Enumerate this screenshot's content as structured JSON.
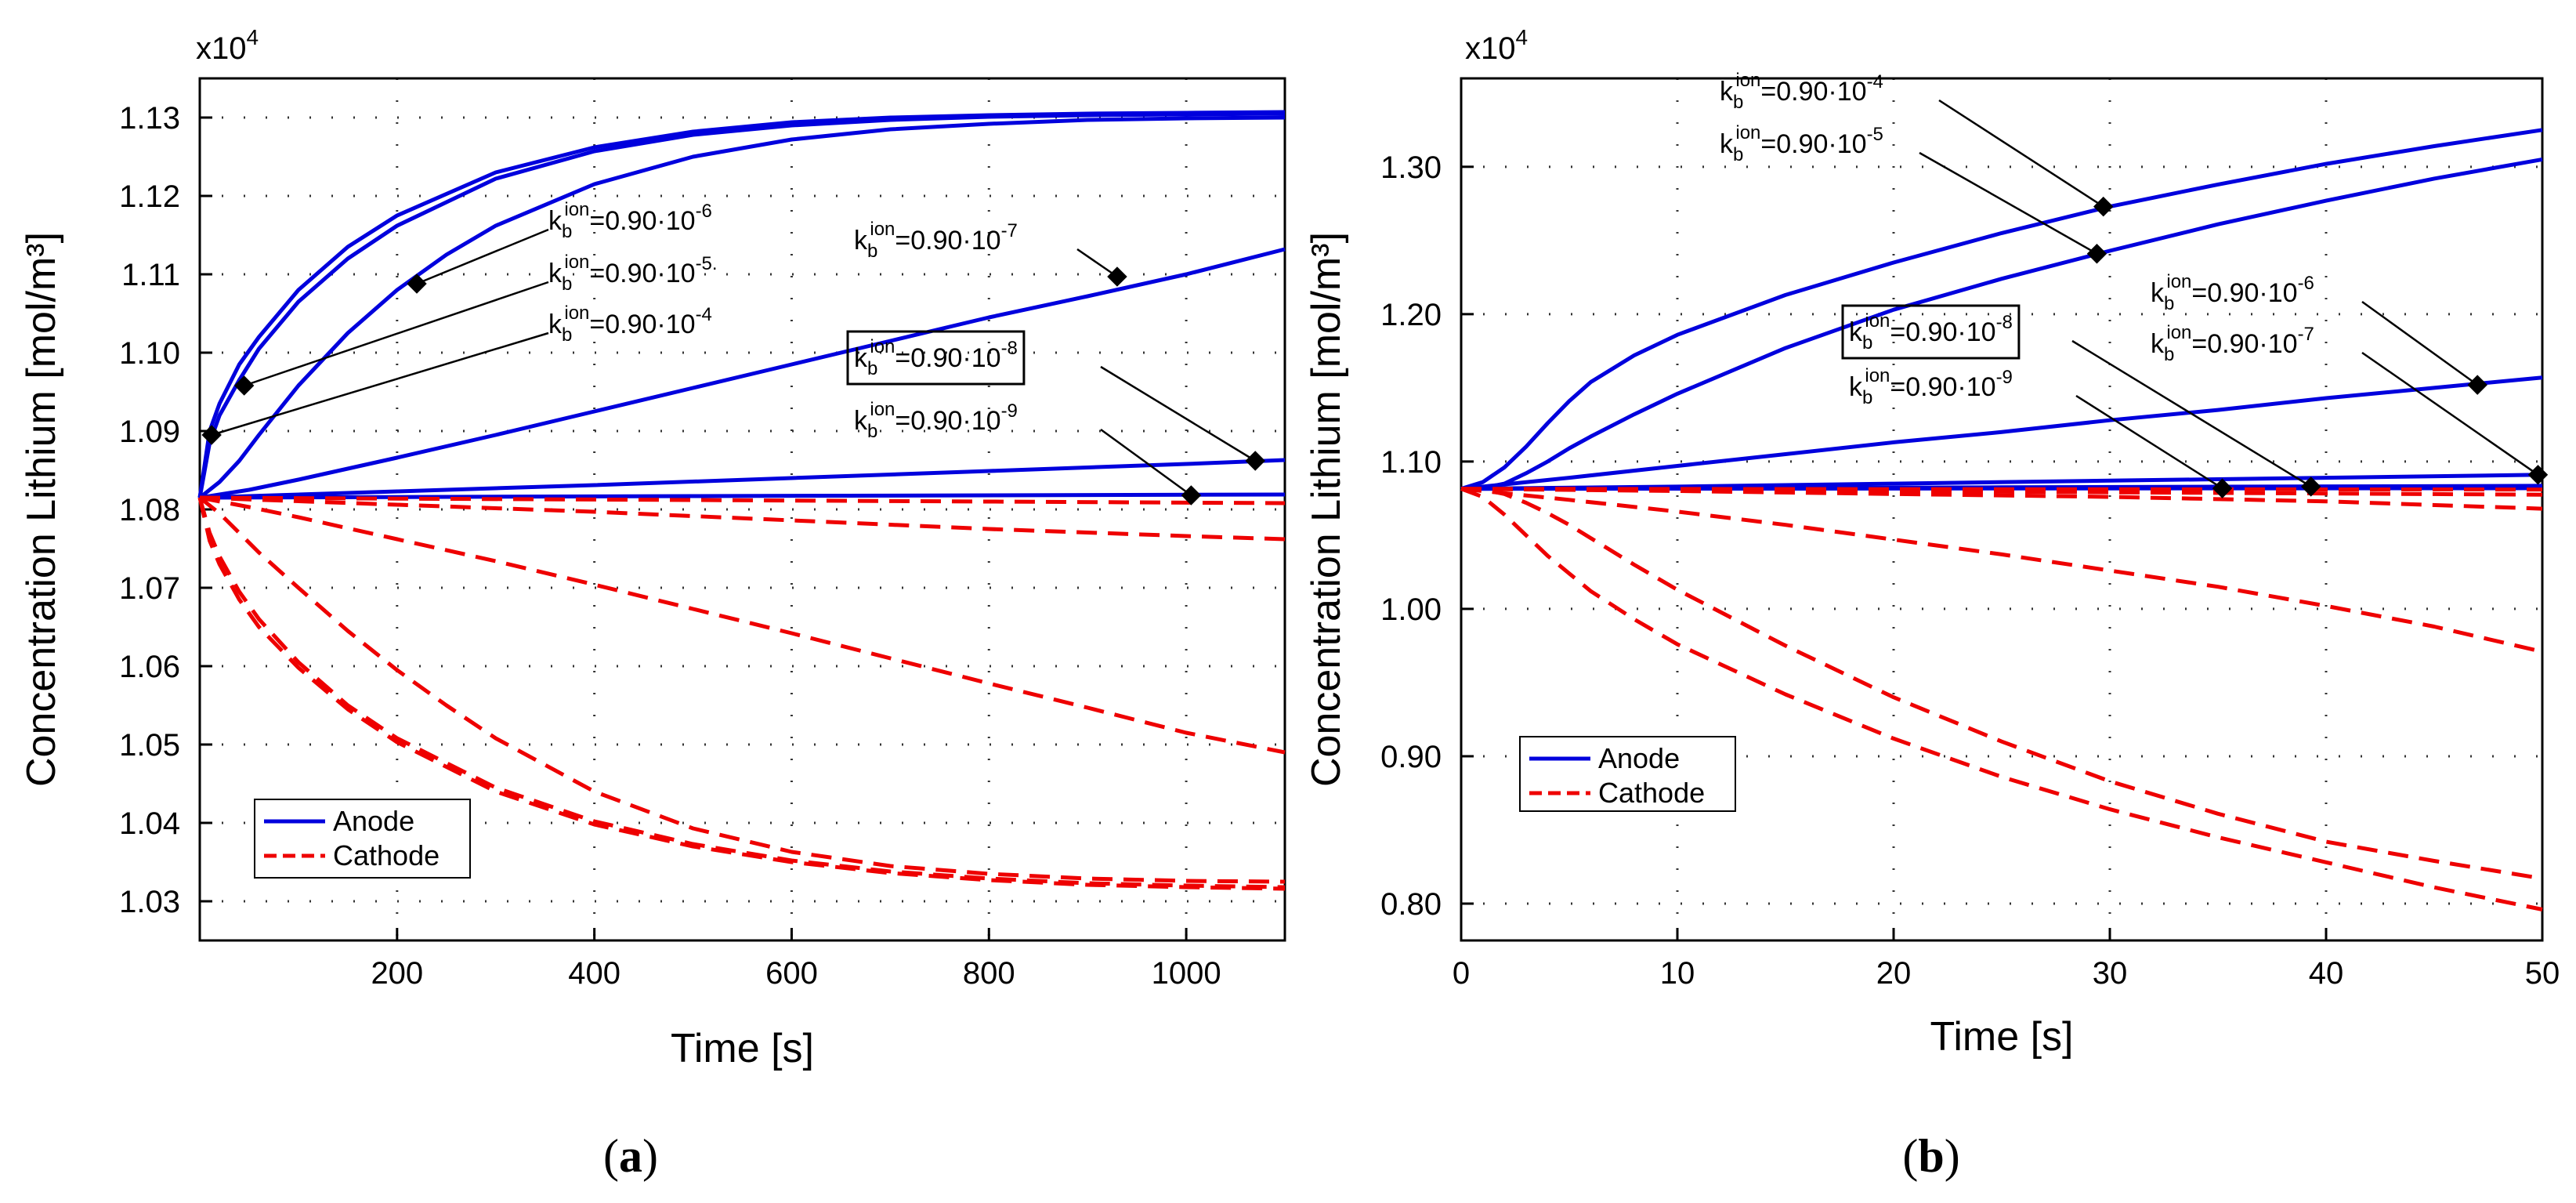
{
  "chart_data": [
    {
      "id": "a",
      "panel_label": "(a)",
      "panel_letter": "a",
      "type": "line",
      "xlabel": "Time [s]",
      "ylabel": "Concentration Lithium [mol/m³]",
      "y_exponent_prefix": "x10",
      "y_exponent_power": "4",
      "xlim": [
        0,
        1100
      ],
      "ylim": [
        1.025,
        1.135
      ],
      "x_ticks": [
        200,
        400,
        600,
        800,
        1000
      ],
      "x_tick_labels": [
        "200",
        "400",
        "600",
        "800",
        "1000"
      ],
      "y_ticks": [
        1.03,
        1.04,
        1.05,
        1.06,
        1.07,
        1.08,
        1.09,
        1.1,
        1.11,
        1.12,
        1.13
      ],
      "y_tick_labels": [
        "1.03",
        "1.04",
        "1.05",
        "1.06",
        "1.07",
        "1.08",
        "1.09",
        "1.10",
        "1.11",
        "1.12",
        "1.13"
      ],
      "grid": "dotted",
      "legend": {
        "placement": "bottom-left",
        "entries": [
          {
            "name": "Anode",
            "color": "#0000dd",
            "style": "solid"
          },
          {
            "name": "Cathode",
            "color": "#ee0000",
            "style": "dashed"
          }
        ]
      },
      "anode_color": "#0000dd",
      "cathode_color": "#ee0000",
      "series": [
        {
          "name": "Anode k=0.90·10^-4",
          "group": "anode",
          "x": [
            0,
            10,
            20,
            40,
            60,
            100,
            150,
            200,
            300,
            400,
            500,
            600,
            700,
            800,
            900,
            1000,
            1100
          ],
          "values": [
            1.0815,
            1.09,
            1.0935,
            1.0985,
            1.102,
            1.108,
            1.1135,
            1.1175,
            1.123,
            1.1262,
            1.1282,
            1.1294,
            1.13,
            1.1303,
            1.1305,
            1.1306,
            1.1307
          ]
        },
        {
          "name": "Anode k=0.90·10^-5",
          "group": "anode",
          "x": [
            0,
            10,
            20,
            40,
            60,
            100,
            150,
            200,
            300,
            400,
            500,
            600,
            700,
            800,
            900,
            1000,
            1100
          ],
          "values": [
            1.0815,
            1.0885,
            1.092,
            1.0965,
            1.1005,
            1.1065,
            1.112,
            1.1162,
            1.1222,
            1.1257,
            1.1278,
            1.129,
            1.1297,
            1.1301,
            1.1303,
            1.1304,
            1.1305
          ]
        },
        {
          "name": "Anode k=0.90·10^-6",
          "group": "anode",
          "x": [
            0,
            20,
            40,
            60,
            100,
            150,
            200,
            250,
            300,
            400,
            500,
            600,
            700,
            800,
            900,
            1000,
            1100
          ],
          "values": [
            1.0815,
            1.0835,
            1.0862,
            1.0895,
            1.0958,
            1.1025,
            1.108,
            1.1125,
            1.1162,
            1.1215,
            1.125,
            1.1272,
            1.1285,
            1.1292,
            1.1297,
            1.1299,
            1.13
          ]
        },
        {
          "name": "Anode k=0.90·10^-7",
          "group": "anode",
          "x": [
            0,
            50,
            100,
            200,
            300,
            400,
            500,
            600,
            700,
            800,
            900,
            1000,
            1100
          ],
          "values": [
            1.0815,
            1.0825,
            1.0838,
            1.0866,
            1.0895,
            1.0925,
            1.0955,
            1.0985,
            1.1015,
            1.1045,
            1.1072,
            1.11,
            1.1132
          ]
        },
        {
          "name": "Anode k=0.90·10^-8",
          "group": "anode",
          "x": [
            0,
            200,
            400,
            600,
            800,
            1000,
            1100
          ],
          "values": [
            1.0815,
            1.0823,
            1.0831,
            1.084,
            1.0849,
            1.0858,
            1.0863
          ]
        },
        {
          "name": "Anode k=0.90·10^-9",
          "group": "anode",
          "x": [
            0,
            500,
            1100
          ],
          "values": [
            1.0815,
            1.0817,
            1.0819
          ]
        },
        {
          "name": "Cathode k=0.90·10^-9",
          "group": "cathode",
          "x": [
            0,
            500,
            1100
          ],
          "values": [
            1.0815,
            1.0812,
            1.0808
          ]
        },
        {
          "name": "Cathode k=0.90·10^-8",
          "group": "cathode",
          "x": [
            0,
            200,
            400,
            600,
            800,
            1000,
            1100
          ],
          "values": [
            1.0815,
            1.0806,
            1.0797,
            1.0786,
            1.0775,
            1.0766,
            1.0762
          ]
        },
        {
          "name": "Cathode k=0.90·10^-7",
          "group": "cathode",
          "x": [
            0,
            50,
            100,
            200,
            300,
            400,
            500,
            600,
            700,
            800,
            900,
            1000,
            1100
          ],
          "values": [
            1.0815,
            1.0803,
            1.079,
            1.0762,
            1.0734,
            1.0704,
            1.0673,
            1.0642,
            1.061,
            1.0578,
            1.0547,
            1.0515,
            1.049
          ]
        },
        {
          "name": "Cathode k=0.90·10^-6",
          "group": "cathode",
          "x": [
            0,
            20,
            40,
            60,
            100,
            150,
            200,
            250,
            300,
            400,
            500,
            600,
            700,
            800,
            900,
            1000,
            1100
          ],
          "values": [
            1.0815,
            1.0795,
            1.077,
            1.0745,
            1.07,
            1.0645,
            1.0595,
            1.055,
            1.0508,
            1.044,
            1.0393,
            1.0363,
            1.0345,
            1.0335,
            1.0329,
            1.0326,
            1.0325
          ]
        },
        {
          "name": "Cathode k=0.90·10^-5",
          "group": "cathode",
          "x": [
            0,
            10,
            20,
            40,
            60,
            100,
            150,
            200,
            300,
            400,
            500,
            600,
            700,
            800,
            900,
            1000,
            1100
          ],
          "values": [
            1.0815,
            1.077,
            1.074,
            1.0695,
            1.066,
            1.0605,
            1.055,
            1.0508,
            1.0445,
            1.0402,
            1.0373,
            1.0352,
            1.0338,
            1.0329,
            1.0323,
            1.032,
            1.0318
          ]
        },
        {
          "name": "Cathode k=0.90·10^-4",
          "group": "cathode",
          "x": [
            0,
            10,
            20,
            40,
            60,
            100,
            150,
            200,
            300,
            400,
            500,
            600,
            700,
            800,
            900,
            1000,
            1100
          ],
          "values": [
            1.0815,
            1.076,
            1.073,
            1.0685,
            1.065,
            1.0598,
            1.0545,
            1.0503,
            1.044,
            1.0398,
            1.037,
            1.035,
            1.0336,
            1.0327,
            1.0321,
            1.0318,
            1.0316
          ]
        }
      ],
      "annotations": [
        {
          "base": "k",
          "sub": "b",
          "sup": "ion",
          "text": "=0.90·10",
          "exp": "-6",
          "boxed": false,
          "target": [
            220,
            1.1088
          ]
        },
        {
          "base": "k",
          "sub": "b",
          "sup": "ion",
          "text": "=0.90·10",
          "exp": "-5.",
          "boxed": false,
          "target": [
            45,
            1.0958
          ]
        },
        {
          "base": "k",
          "sub": "b",
          "sup": "ion",
          "text": "=0.90·10",
          "exp": "-4",
          "boxed": false,
          "target": [
            12,
            1.0895
          ]
        },
        {
          "base": "k",
          "sub": "b",
          "sup": "ion",
          "text": "=0.90·10",
          "exp": "-7",
          "boxed": false,
          "target": [
            930,
            1.1097
          ]
        },
        {
          "base": "k",
          "sub": "b",
          "sup": "ion",
          "text": "=0.90·10",
          "exp": "-8",
          "boxed": true,
          "target": [
            1070,
            1.0862
          ]
        },
        {
          "base": "k",
          "sub": "b",
          "sup": "ion",
          "text": "=0.90·10",
          "exp": "-9",
          "boxed": false,
          "target": [
            1005,
            1.0818
          ]
        }
      ]
    },
    {
      "id": "b",
      "panel_label": "(b)",
      "panel_letter": "b",
      "type": "line",
      "xlabel": "Time [s]",
      "ylabel": "Concentration Lithium [mol/m³]",
      "y_exponent_prefix": "x10",
      "y_exponent_power": "4",
      "xlim": [
        0,
        50
      ],
      "ylim": [
        0.775,
        1.36
      ],
      "x_ticks": [
        0,
        10,
        20,
        30,
        40,
        50
      ],
      "x_tick_labels": [
        "0",
        "10",
        "20",
        "30",
        "40",
        "50"
      ],
      "y_ticks": [
        0.8,
        0.9,
        1.0,
        1.1,
        1.2,
        1.3
      ],
      "y_tick_labels": [
        "0.80",
        "0.90",
        "1.00",
        "1.10",
        "1.20",
        "1.30"
      ],
      "grid": "dotted",
      "legend": {
        "placement": "middle-left",
        "entries": [
          {
            "name": "Anode",
            "color": "#0000dd",
            "style": "solid"
          },
          {
            "name": "Cathode",
            "color": "#ee0000",
            "style": "dashed"
          }
        ]
      },
      "anode_color": "#0000dd",
      "cathode_color": "#ee0000",
      "series": [
        {
          "name": "Anode k=0.90·10^-4",
          "group": "anode",
          "x": [
            0,
            1,
            2,
            3,
            4,
            5,
            6,
            8,
            10,
            15,
            20,
            25,
            30,
            35,
            40,
            45,
            50
          ],
          "values": [
            1.0815,
            1.086,
            1.096,
            1.11,
            1.126,
            1.141,
            1.154,
            1.172,
            1.186,
            1.213,
            1.235,
            1.255,
            1.273,
            1.288,
            1.302,
            1.314,
            1.325
          ]
        },
        {
          "name": "Anode k=0.90·10^-5",
          "group": "anode",
          "x": [
            0,
            1,
            2,
            3,
            4,
            5,
            6,
            8,
            10,
            15,
            20,
            25,
            30,
            35,
            40,
            45,
            50
          ],
          "values": [
            1.0815,
            1.082,
            1.085,
            1.092,
            1.1,
            1.109,
            1.117,
            1.132,
            1.146,
            1.177,
            1.203,
            1.224,
            1.243,
            1.261,
            1.277,
            1.292,
            1.305
          ]
        },
        {
          "name": "Anode k=0.90·10^-6",
          "group": "anode",
          "x": [
            0,
            5,
            10,
            15,
            20,
            25,
            30,
            35,
            40,
            45,
            50
          ],
          "values": [
            1.0815,
            1.089,
            1.097,
            1.105,
            1.113,
            1.12,
            1.128,
            1.135,
            1.143,
            1.15,
            1.157
          ]
        },
        {
          "name": "Anode k=0.90·10^-7",
          "group": "anode",
          "x": [
            0,
            10,
            20,
            30,
            40,
            50
          ],
          "values": [
            1.0815,
            1.083,
            1.085,
            1.087,
            1.089,
            1.091
          ]
        },
        {
          "name": "Anode k=0.90·10^-8",
          "group": "anode",
          "x": [
            0,
            25,
            50
          ],
          "values": [
            1.0815,
            1.0825,
            1.0835
          ]
        },
        {
          "name": "Anode k=0.90·10^-9",
          "group": "anode",
          "x": [
            0,
            25,
            50
          ],
          "values": [
            1.0815,
            1.0817,
            1.0819
          ]
        },
        {
          "name": "Cathode k=0.90·10^-9",
          "group": "cathode",
          "x": [
            0,
            25,
            50
          ],
          "values": [
            1.0815,
            1.0812,
            1.081
          ]
        },
        {
          "name": "Cathode k=0.90·10^-8",
          "group": "cathode",
          "x": [
            0,
            25,
            50
          ],
          "values": [
            1.0815,
            1.0795,
            1.0775
          ]
        },
        {
          "name": "Cathode k=0.90·10^-7",
          "group": "cathode",
          "x": [
            0,
            10,
            20,
            30,
            40,
            50
          ],
          "values": [
            1.0815,
            1.08,
            1.078,
            1.076,
            1.073,
            1.068
          ]
        },
        {
          "name": "Cathode k=0.90·10^-6",
          "group": "cathode",
          "x": [
            0,
            5,
            10,
            15,
            20,
            25,
            30,
            35,
            40,
            45,
            50
          ],
          "values": [
            1.0815,
            1.074,
            1.066,
            1.057,
            1.047,
            1.037,
            1.026,
            1.015,
            1.002,
            0.988,
            0.971
          ]
        },
        {
          "name": "Cathode k=0.90·10^-5",
          "group": "cathode",
          "x": [
            0,
            1,
            2,
            3,
            4,
            5,
            6,
            8,
            10,
            15,
            20,
            25,
            30,
            35,
            40,
            45,
            50
          ],
          "values": [
            1.0815,
            1.081,
            1.078,
            1.072,
            1.065,
            1.057,
            1.048,
            1.03,
            1.013,
            0.975,
            0.94,
            0.91,
            0.883,
            0.861,
            0.842,
            0.829,
            0.817
          ]
        },
        {
          "name": "Cathode k=0.90·10^-4",
          "group": "cathode",
          "x": [
            0,
            1,
            2,
            3,
            4,
            5,
            6,
            8,
            10,
            15,
            20,
            25,
            30,
            35,
            40,
            45,
            50
          ],
          "values": [
            1.0815,
            1.076,
            1.064,
            1.05,
            1.036,
            1.024,
            1.012,
            0.993,
            0.976,
            0.942,
            0.912,
            0.886,
            0.864,
            0.845,
            0.828,
            0.811,
            0.796
          ]
        }
      ],
      "annotations": [
        {
          "base": "k",
          "sub": "b",
          "sup": "ion",
          "text": "=0.90·10",
          "exp": "-4",
          "boxed": false,
          "target": [
            29.7,
            1.273
          ]
        },
        {
          "base": "k",
          "sub": "b",
          "sup": "ion",
          "text": "=0.90·10",
          "exp": "-5",
          "boxed": false,
          "target": [
            29.4,
            1.241
          ]
        },
        {
          "base": "k",
          "sub": "b",
          "sup": "ion",
          "text": "=0.90·10",
          "exp": "-6",
          "boxed": false,
          "target": [
            47.0,
            1.152
          ]
        },
        {
          "base": "k",
          "sub": "b",
          "sup": "ion",
          "text": "=0.90·10",
          "exp": "-7",
          "boxed": false,
          "target": [
            49.8,
            1.091
          ]
        },
        {
          "base": "k",
          "sub": "b",
          "sup": "ion",
          "text": "=0.90·10",
          "exp": "-8",
          "boxed": true,
          "target": [
            39.3,
            1.083
          ]
        },
        {
          "base": "k",
          "sub": "b",
          "sup": "ion",
          "text": "=0.90·10",
          "exp": "-9",
          "boxed": false,
          "target": [
            35.2,
            1.0818
          ]
        }
      ]
    }
  ]
}
